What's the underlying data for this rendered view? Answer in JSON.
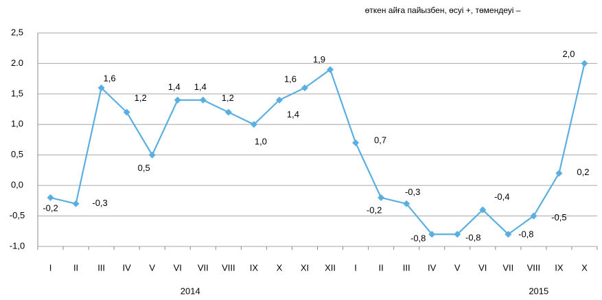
{
  "chart_data": {
    "type": "line",
    "subtitle": "өткен айға пайызбен, өсуі +, төмендеуі –",
    "categories": [
      "I",
      "II",
      "III",
      "IV",
      "V",
      "VI",
      "VII",
      "VIII",
      "IX",
      "X",
      "XI",
      "XII",
      "I",
      "II",
      "III",
      "IV",
      "V",
      "VI",
      "VII",
      "VIII",
      "IX",
      "X"
    ],
    "x_groups": [
      "2014",
      "2015"
    ],
    "series": [
      {
        "name": null,
        "color": "#5aafe0",
        "values": [
          -0.2,
          -0.3,
          1.6,
          1.2,
          0.5,
          1.4,
          1.4,
          1.2,
          1.0,
          1.4,
          1.6,
          1.9,
          0.7,
          -0.2,
          -0.3,
          -0.8,
          -0.8,
          -0.4,
          -0.8,
          -0.5,
          0.2,
          2.0
        ],
        "value_labels": [
          "-0,2",
          "-0,3",
          "1,6",
          "1,2",
          "0,5",
          "1,4",
          "1,4",
          "1,2",
          "1,0",
          "1,4",
          "1,6",
          "1,9",
          "0,7",
          "-0,2",
          "-0,3",
          "-0,8",
          "-0,8",
          "-0,4",
          "-0,8",
          "-0,5",
          "0,2",
          "2,0"
        ]
      }
    ],
    "ylim": [
      -1.0,
      2.5
    ],
    "yticks": [
      {
        "value": -1.0,
        "label": "-1,0"
      },
      {
        "value": -0.5,
        "label": "-0,5"
      },
      {
        "value": 0.0,
        "label": "0,0"
      },
      {
        "value": 0.5,
        "label": "0,5"
      },
      {
        "value": 1.0,
        "label": "1,0"
      },
      {
        "value": 1.5,
        "label": "1,5"
      },
      {
        "value": 2.0,
        "label": "2.0"
      },
      {
        "value": 2.5,
        "label": "2,5"
      }
    ],
    "grid": true
  }
}
